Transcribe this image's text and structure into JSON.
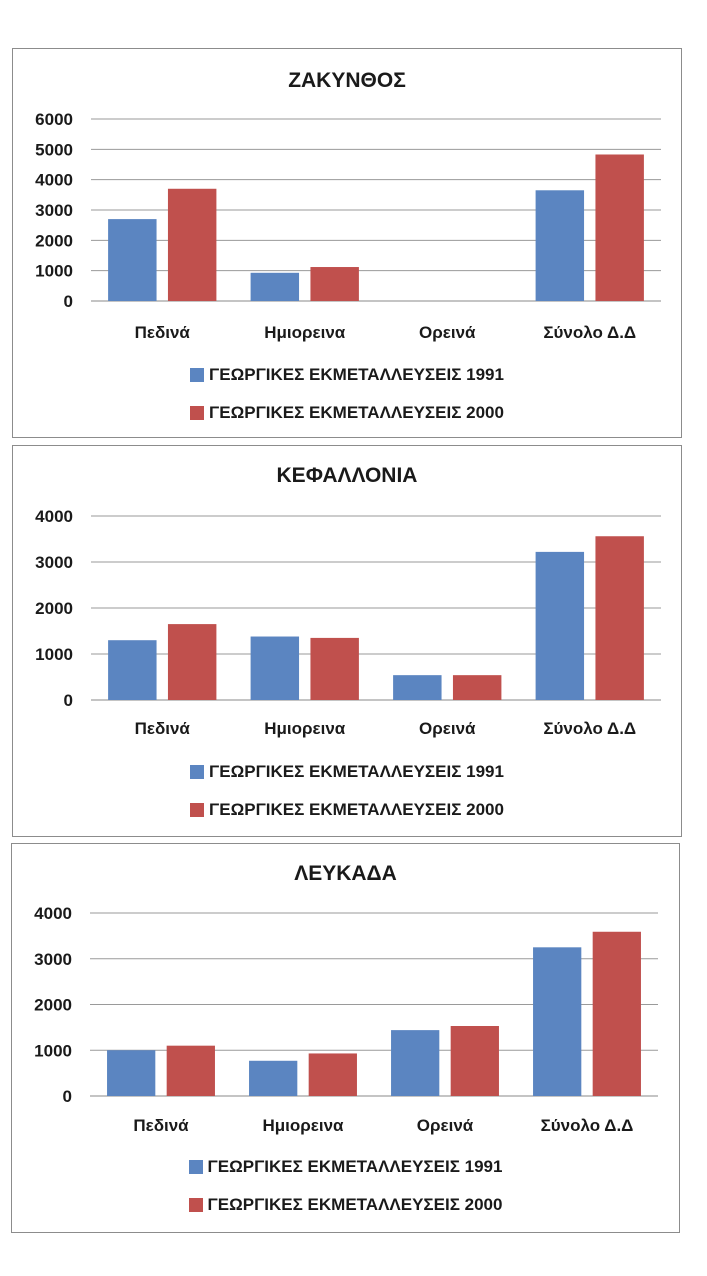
{
  "colors": {
    "series_1991": "#5b85c1",
    "series_2000": "#c0504d"
  },
  "chart_data": [
    {
      "type": "bar",
      "title": "ΖΑΚΥΝΘΟΣ",
      "categories": [
        "Πεδινά",
        "Ημιορεινα",
        "Ορεινά",
        "Σύνολο Δ.Δ"
      ],
      "series": [
        {
          "name": "ΓΕΩΡΓΙΚΕΣ ΕΚΜΕΤΑΛΛΕΥΣΕΙΣ 1991",
          "values": [
            2700,
            930,
            0,
            3650
          ]
        },
        {
          "name": "ΓΕΩΡΓΙΚΕΣ ΕΚΜΕΤΑΛΛΕΥΣΕΙΣ 2000",
          "values": [
            3700,
            1120,
            0,
            4830
          ]
        }
      ],
      "yticks": [
        0,
        1000,
        2000,
        3000,
        4000,
        5000,
        6000
      ],
      "ylim": [
        0,
        6000
      ],
      "grid": true,
      "legend_position": "bottom"
    },
    {
      "type": "bar",
      "title": "ΚΕΦΑΛΛΟΝΙΑ",
      "categories": [
        "Πεδινά",
        "Ημιορεινα",
        "Ορεινά",
        "Σύνολο Δ.Δ"
      ],
      "series": [
        {
          "name": "ΓΕΩΡΓΙΚΕΣ ΕΚΜΕΤΑΛΛΕΥΣΕΙΣ 1991",
          "values": [
            1300,
            1380,
            540,
            3220
          ]
        },
        {
          "name": "ΓΕΩΡΓΙΚΕΣ ΕΚΜΕΤΑΛΛΕΥΣΕΙΣ 2000",
          "values": [
            1650,
            1350,
            540,
            3560
          ]
        }
      ],
      "yticks": [
        0,
        1000,
        2000,
        3000,
        4000
      ],
      "ylim": [
        0,
        4000
      ],
      "grid": true,
      "legend_position": "bottom"
    },
    {
      "type": "bar",
      "title": "ΛΕΥΚΑΔΑ",
      "categories": [
        "Πεδινά",
        "Ημιορεινα",
        "Ορεινά",
        "Σύνολο Δ.Δ"
      ],
      "series": [
        {
          "name": "ΓΕΩΡΓΙΚΕΣ ΕΚΜΕΤΑΛΛΕΥΣΕΙΣ 1991",
          "values": [
            1000,
            770,
            1440,
            3250
          ]
        },
        {
          "name": "ΓΕΩΡΓΙΚΕΣ ΕΚΜΕΤΑΛΛΕΥΣΕΙΣ 2000",
          "values": [
            1100,
            930,
            1530,
            3590
          ]
        }
      ],
      "yticks": [
        0,
        1000,
        2000,
        3000,
        4000
      ],
      "ylim": [
        0,
        4000
      ],
      "grid": true,
      "legend_position": "bottom"
    }
  ]
}
